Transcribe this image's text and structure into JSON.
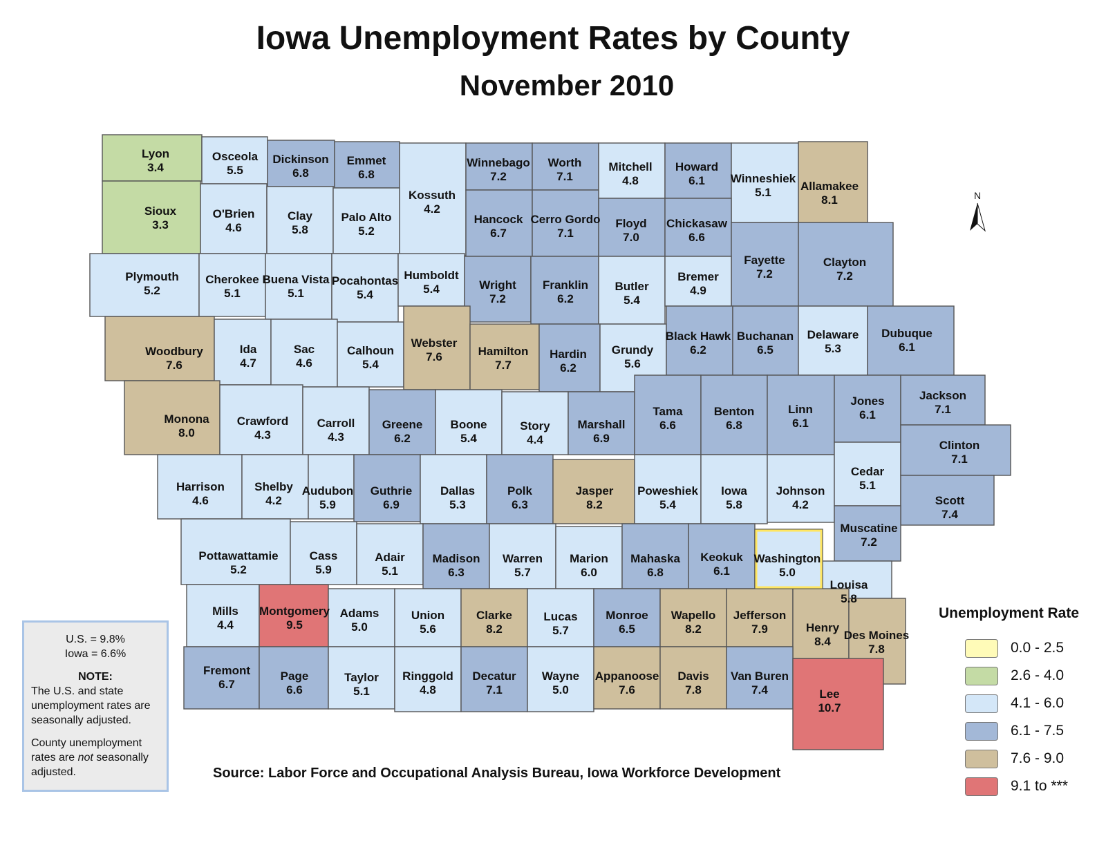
{
  "title": "Iowa Unemployment Rates by County",
  "subtitle": "November 2010",
  "north_label": "N",
  "colors": {
    "c1": "#fffbb8",
    "c2": "#c4dba5",
    "c3": "#d4e7f8",
    "c4": "#a3b8d7",
    "c5": "#cfbf9d",
    "c6": "#e07576",
    "border": "#555555",
    "highlight": "#ffe660"
  },
  "legend": {
    "title": "Unemployment Rate",
    "items": [
      {
        "label": "0.0 - 2.5",
        "color": "#fffbb8"
      },
      {
        "label": "2.6 - 4.0",
        "color": "#c4dba5"
      },
      {
        "label": "4.1 - 6.0",
        "color": "#d4e7f8"
      },
      {
        "label": "6.1 - 7.5",
        "color": "#a3b8d7"
      },
      {
        "label": "7.6 - 9.0",
        "color": "#cfbf9d"
      },
      {
        "label": "9.1 to ***",
        "color": "#e07576"
      }
    ]
  },
  "note": {
    "us_rate": "U.S. = 9.8%",
    "iowa_rate": "Iowa = 6.6%",
    "heading": "NOTE:",
    "line1": "The U.S. and state unemployment rates are seasonally adjusted.",
    "line2_pre": "County unemployment rates are ",
    "line2_em": "not",
    "line2_post": " seasonally adjusted."
  },
  "source": "Source: Labor Force and Occupational Analysis Bureau, Iowa Workforce Development",
  "counties": [
    {
      "name": "Lyon",
      "rate": "3.4",
      "cls": 2
    },
    {
      "name": "Osceola",
      "rate": "5.5",
      "cls": 3
    },
    {
      "name": "Dickinson",
      "rate": "6.8",
      "cls": 4
    },
    {
      "name": "Emmet",
      "rate": "6.8",
      "cls": 4
    },
    {
      "name": "Kossuth",
      "rate": "4.2",
      "cls": 3
    },
    {
      "name": "Winnebago",
      "rate": "7.2",
      "cls": 4
    },
    {
      "name": "Worth",
      "rate": "7.1",
      "cls": 4
    },
    {
      "name": "Mitchell",
      "rate": "4.8",
      "cls": 3
    },
    {
      "name": "Howard",
      "rate": "6.1",
      "cls": 4
    },
    {
      "name": "Winneshiek",
      "rate": "5.1",
      "cls": 3
    },
    {
      "name": "Allamakee",
      "rate": "8.1",
      "cls": 5
    },
    {
      "name": "Sioux",
      "rate": "3.3",
      "cls": 2
    },
    {
      "name": "O'Brien",
      "rate": "4.6",
      "cls": 3
    },
    {
      "name": "Clay",
      "rate": "5.8",
      "cls": 3
    },
    {
      "name": "Palo Alto",
      "rate": "5.2",
      "cls": 3
    },
    {
      "name": "Hancock",
      "rate": "6.7",
      "cls": 4
    },
    {
      "name": "Cerro Gordo",
      "rate": "7.1",
      "cls": 4
    },
    {
      "name": "Floyd",
      "rate": "7.0",
      "cls": 4
    },
    {
      "name": "Chickasaw",
      "rate": "6.6",
      "cls": 4
    },
    {
      "name": "Fayette",
      "rate": "7.2",
      "cls": 4
    },
    {
      "name": "Clayton",
      "rate": "7.2",
      "cls": 4
    },
    {
      "name": "Plymouth",
      "rate": "5.2",
      "cls": 3
    },
    {
      "name": "Cherokee",
      "rate": "5.1",
      "cls": 3
    },
    {
      "name": "Buena Vista",
      "rate": "5.1",
      "cls": 3
    },
    {
      "name": "Pocahontas",
      "rate": "5.4",
      "cls": 3
    },
    {
      "name": "Humboldt",
      "rate": "5.4",
      "cls": 3
    },
    {
      "name": "Wright",
      "rate": "7.2",
      "cls": 4
    },
    {
      "name": "Franklin",
      "rate": "6.2",
      "cls": 4
    },
    {
      "name": "Butler",
      "rate": "5.4",
      "cls": 3
    },
    {
      "name": "Bremer",
      "rate": "4.9",
      "cls": 3
    },
    {
      "name": "Woodbury",
      "rate": "7.6",
      "cls": 5
    },
    {
      "name": "Ida",
      "rate": "4.7",
      "cls": 3
    },
    {
      "name": "Sac",
      "rate": "4.6",
      "cls": 3
    },
    {
      "name": "Calhoun",
      "rate": "5.4",
      "cls": 3
    },
    {
      "name": "Webster",
      "rate": "7.6",
      "cls": 5
    },
    {
      "name": "Hamilton",
      "rate": "7.7",
      "cls": 5
    },
    {
      "name": "Hardin",
      "rate": "6.2",
      "cls": 4
    },
    {
      "name": "Grundy",
      "rate": "5.6",
      "cls": 3
    },
    {
      "name": "Black Hawk",
      "rate": "6.2",
      "cls": 4
    },
    {
      "name": "Buchanan",
      "rate": "6.5",
      "cls": 4
    },
    {
      "name": "Delaware",
      "rate": "5.3",
      "cls": 3
    },
    {
      "name": "Dubuque",
      "rate": "6.1",
      "cls": 4
    },
    {
      "name": "Monona",
      "rate": "8.0",
      "cls": 5
    },
    {
      "name": "Crawford",
      "rate": "4.3",
      "cls": 3
    },
    {
      "name": "Carroll",
      "rate": "4.3",
      "cls": 3
    },
    {
      "name": "Greene",
      "rate": "6.2",
      "cls": 4
    },
    {
      "name": "Boone",
      "rate": "5.4",
      "cls": 3
    },
    {
      "name": "Story",
      "rate": "4.4",
      "cls": 3
    },
    {
      "name": "Marshall",
      "rate": "6.9",
      "cls": 4
    },
    {
      "name": "Tama",
      "rate": "6.6",
      "cls": 4
    },
    {
      "name": "Benton",
      "rate": "6.8",
      "cls": 4
    },
    {
      "name": "Linn",
      "rate": "6.1",
      "cls": 4
    },
    {
      "name": "Jones",
      "rate": "6.1",
      "cls": 4
    },
    {
      "name": "Jackson",
      "rate": "7.1",
      "cls": 4
    },
    {
      "name": "Harrison",
      "rate": "4.6",
      "cls": 3
    },
    {
      "name": "Shelby",
      "rate": "4.2",
      "cls": 3
    },
    {
      "name": "Audubon",
      "rate": "5.9",
      "cls": 3
    },
    {
      "name": "Guthrie",
      "rate": "6.9",
      "cls": 4
    },
    {
      "name": "Dallas",
      "rate": "5.3",
      "cls": 3
    },
    {
      "name": "Polk",
      "rate": "6.3",
      "cls": 4
    },
    {
      "name": "Jasper",
      "rate": "8.2",
      "cls": 5
    },
    {
      "name": "Poweshiek",
      "rate": "5.4",
      "cls": 3
    },
    {
      "name": "Iowa",
      "rate": "5.8",
      "cls": 3
    },
    {
      "name": "Johnson",
      "rate": "4.2",
      "cls": 3
    },
    {
      "name": "Cedar",
      "rate": "5.1",
      "cls": 3
    },
    {
      "name": "Clinton",
      "rate": "7.1",
      "cls": 4
    },
    {
      "name": "Scott",
      "rate": "7.4",
      "cls": 4
    },
    {
      "name": "Muscatine",
      "rate": "7.2",
      "cls": 4
    },
    {
      "name": "Pottawattamie",
      "rate": "5.2",
      "cls": 3
    },
    {
      "name": "Cass",
      "rate": "5.9",
      "cls": 3
    },
    {
      "name": "Adair",
      "rate": "5.1",
      "cls": 3
    },
    {
      "name": "Madison",
      "rate": "6.3",
      "cls": 4
    },
    {
      "name": "Warren",
      "rate": "5.7",
      "cls": 3
    },
    {
      "name": "Marion",
      "rate": "6.0",
      "cls": 3
    },
    {
      "name": "Mahaska",
      "rate": "6.8",
      "cls": 4
    },
    {
      "name": "Keokuk",
      "rate": "6.1",
      "cls": 4
    },
    {
      "name": "Washington",
      "rate": "5.0",
      "cls": 3
    },
    {
      "name": "Louisa",
      "rate": "5.8",
      "cls": 3
    },
    {
      "name": "Mills",
      "rate": "4.4",
      "cls": 3
    },
    {
      "name": "Montgomery",
      "rate": "9.5",
      "cls": 6
    },
    {
      "name": "Adams",
      "rate": "5.0",
      "cls": 3
    },
    {
      "name": "Union",
      "rate": "5.6",
      "cls": 3
    },
    {
      "name": "Clarke",
      "rate": "8.2",
      "cls": 5
    },
    {
      "name": "Lucas",
      "rate": "5.7",
      "cls": 3
    },
    {
      "name": "Monroe",
      "rate": "6.5",
      "cls": 4
    },
    {
      "name": "Wapello",
      "rate": "8.2",
      "cls": 5
    },
    {
      "name": "Jefferson",
      "rate": "7.9",
      "cls": 5
    },
    {
      "name": "Henry",
      "rate": "8.4",
      "cls": 5
    },
    {
      "name": "Des Moines",
      "rate": "7.8",
      "cls": 5
    },
    {
      "name": "Fremont",
      "rate": "6.7",
      "cls": 4
    },
    {
      "name": "Page",
      "rate": "6.6",
      "cls": 4
    },
    {
      "name": "Taylor",
      "rate": "5.1",
      "cls": 3
    },
    {
      "name": "Ringgold",
      "rate": "4.8",
      "cls": 3
    },
    {
      "name": "Decatur",
      "rate": "7.1",
      "cls": 4
    },
    {
      "name": "Wayne",
      "rate": "5.0",
      "cls": 3
    },
    {
      "name": "Appanoose",
      "rate": "7.6",
      "cls": 5
    },
    {
      "name": "Davis",
      "rate": "7.8",
      "cls": 5
    },
    {
      "name": "Van Buren",
      "rate": "7.4",
      "cls": 4
    },
    {
      "name": "Lee",
      "rate": "10.7",
      "cls": 6
    }
  ]
}
